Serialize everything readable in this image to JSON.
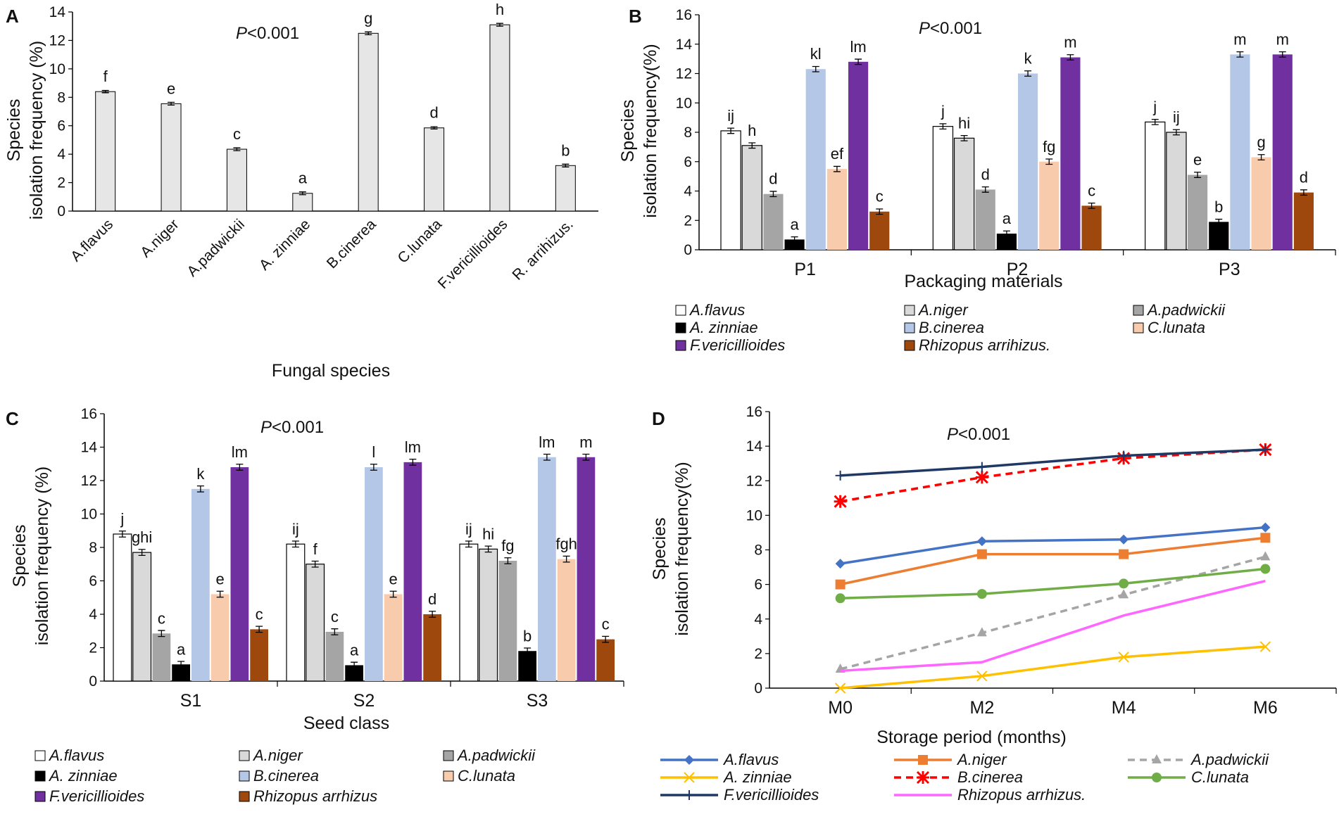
{
  "colors": {
    "A.flavus": "#ffffff",
    "A.niger": "#d9d9d9",
    "A.padwickii": "#a5a5a5",
    "A. zinniae": "#000000",
    "B.cinerea": "#b4c7e7",
    "C.lunata": "#f8cbad",
    "F.vericillioides": "#7030a0",
    "Rhizopus arrhizus": "#9e480e",
    "lineA.flavus": "#4472c4",
    "lineA.niger": "#ed7d31",
    "lineA.padwickii": "#a5a5a5",
    "lineA.zinniae": "#ffc000",
    "lineB.cinerea": "#ff0000",
    "lineC.lunata": "#70ad47",
    "lineF.vericillioides": "#1f3864",
    "lineRhizopus": "#ff66ff"
  },
  "chart_data": [
    {
      "panel": "A",
      "type": "bar",
      "pvalue": "P<0.001",
      "ylabel_line1": "Species",
      "ylabel_line2": "isolation frequency  (%)",
      "xlabel": "Fungal species",
      "ylim": [
        0,
        14
      ],
      "yticks": [
        "0",
        "2",
        "4",
        "6",
        "8",
        "10",
        "12",
        "14"
      ],
      "categories": [
        "A.flavus",
        "A.niger",
        "A.padwickii",
        "A. zinniae",
        "B.cinerea",
        "C.lunata",
        "F.vericillioides",
        "R. arrihizus."
      ],
      "values": [
        8.4,
        7.55,
        4.35,
        1.25,
        12.5,
        5.85,
        13.1,
        3.2
      ],
      "errors": [
        0.08,
        0.1,
        0.1,
        0.1,
        0.1,
        0.08,
        0.1,
        0.1
      ],
      "letters": [
        "f",
        "e",
        "c",
        "a",
        "g",
        "d",
        "h",
        "b"
      ]
    },
    {
      "panel": "B",
      "type": "bar",
      "pvalue": "P<0.001",
      "ylabel_line1": "Species",
      "ylabel_line2": "isolation frequency(%)",
      "xlabel": "Packaging materials",
      "ylim": [
        0,
        16
      ],
      "yticks": [
        "0",
        "2",
        "4",
        "6",
        "8",
        "10",
        "12",
        "14",
        "16"
      ],
      "groups": [
        "P1",
        "P2",
        "P3"
      ],
      "series": [
        {
          "name": "A.flavus",
          "values": [
            8.1,
            8.4,
            8.7
          ],
          "letters": [
            "ij",
            "j",
            "j"
          ]
        },
        {
          "name": "A.niger",
          "values": [
            7.1,
            7.6,
            8.0
          ],
          "letters": [
            "h",
            "hi",
            "ij"
          ]
        },
        {
          "name": "A.padwickii",
          "values": [
            3.8,
            4.1,
            5.1
          ],
          "letters": [
            "d",
            "d",
            "e"
          ]
        },
        {
          "name": "A. zinniae",
          "values": [
            0.7,
            1.1,
            1.9
          ],
          "letters": [
            "a",
            "a",
            "b"
          ]
        },
        {
          "name": "B.cinerea",
          "values": [
            12.3,
            12.0,
            13.3
          ],
          "letters": [
            "kl",
            "k",
            "m"
          ]
        },
        {
          "name": "C.lunata",
          "values": [
            5.5,
            6.0,
            6.3
          ],
          "letters": [
            "ef",
            "fg",
            "g"
          ]
        },
        {
          "name": "F.vericillioides",
          "values": [
            12.8,
            13.1,
            13.3
          ],
          "letters": [
            "lm",
            "m",
            "m"
          ]
        },
        {
          "name": "Rhizopus arrihizus.",
          "values": [
            2.6,
            3.0,
            3.9
          ],
          "letters": [
            "c",
            "c",
            "d"
          ]
        }
      ],
      "legend": [
        "A.flavus",
        "A.niger",
        "A.padwickii",
        "A. zinniae",
        "B.cinerea",
        "C.lunata",
        "F.vericillioides",
        "Rhizopus arrihizus."
      ]
    },
    {
      "panel": "C",
      "type": "bar",
      "pvalue": "P<0.001",
      "ylabel_line1": "Species",
      "ylabel_line2": "isolation frequency  (%)",
      "xlabel": "Seed class",
      "ylim": [
        0,
        16
      ],
      "yticks": [
        "0",
        "2",
        "4",
        "6",
        "8",
        "10",
        "12",
        "14",
        "16"
      ],
      "groups": [
        "S1",
        "S2",
        "S3"
      ],
      "series": [
        {
          "name": "A.flavus",
          "values": [
            8.8,
            8.2,
            8.2
          ],
          "letters": [
            "j",
            "ij",
            "ij"
          ]
        },
        {
          "name": "A.niger",
          "values": [
            7.7,
            7.0,
            7.9
          ],
          "letters": [
            "ghi",
            "f",
            "hi"
          ]
        },
        {
          "name": "A.padwickii",
          "values": [
            2.85,
            2.95,
            7.2
          ],
          "letters": [
            "c",
            "c",
            "fg"
          ]
        },
        {
          "name": "A. zinniae",
          "values": [
            1.0,
            0.95,
            1.8
          ],
          "letters": [
            "a",
            "a",
            "b"
          ]
        },
        {
          "name": "B.cinerea",
          "values": [
            11.5,
            12.8,
            13.4
          ],
          "letters": [
            "k",
            "l",
            "lm"
          ]
        },
        {
          "name": "C.lunata",
          "values": [
            5.2,
            5.2,
            7.3
          ],
          "letters": [
            "e",
            "e",
            "fgh"
          ]
        },
        {
          "name": "F.vericillioides",
          "values": [
            12.8,
            13.1,
            13.4
          ],
          "letters": [
            "lm",
            "lm",
            "m"
          ]
        },
        {
          "name": "Rhizopus arrhizus",
          "values": [
            3.1,
            4.0,
            2.5
          ],
          "letters": [
            "c",
            "d",
            "c"
          ]
        }
      ],
      "legend": [
        "A.flavus",
        "A.niger",
        "A.padwickii",
        "A. zinniae",
        "B.cinerea",
        "C.lunata",
        "F.vericillioides",
        "Rhizopus arrhizus"
      ]
    },
    {
      "panel": "D",
      "type": "line",
      "pvalue": "P<0.001",
      "ylabel_line1": "Species",
      "ylabel_line2": "isolation frequency(%)",
      "xlabel": "Storage period (months)",
      "ylim": [
        0,
        16
      ],
      "yticks": [
        "0",
        "2",
        "4",
        "6",
        "8",
        "10",
        "12",
        "14",
        "16"
      ],
      "x": [
        "M0",
        "M2",
        "M4",
        "M6"
      ],
      "series": [
        {
          "name": "A.flavus",
          "values": [
            7.2,
            8.5,
            8.6,
            9.3
          ]
        },
        {
          "name": "A.niger",
          "values": [
            6.0,
            7.75,
            7.75,
            8.7
          ]
        },
        {
          "name": "A.padwickii",
          "values": [
            1.1,
            3.2,
            5.4,
            7.6
          ]
        },
        {
          "name": "A. zinniae",
          "values": [
            0.0,
            0.7,
            1.8,
            2.4
          ]
        },
        {
          "name": "B.cinerea",
          "values": [
            10.8,
            12.2,
            13.3,
            13.8
          ]
        },
        {
          "name": "C.lunata",
          "values": [
            5.2,
            5.45,
            6.05,
            6.9
          ]
        },
        {
          "name": "F.vericillioides",
          "values": [
            12.3,
            12.8,
            13.45,
            13.8
          ]
        },
        {
          "name": "Rhizopus arrhizus.",
          "values": [
            1.0,
            1.5,
            4.2,
            6.2
          ]
        }
      ]
    }
  ]
}
